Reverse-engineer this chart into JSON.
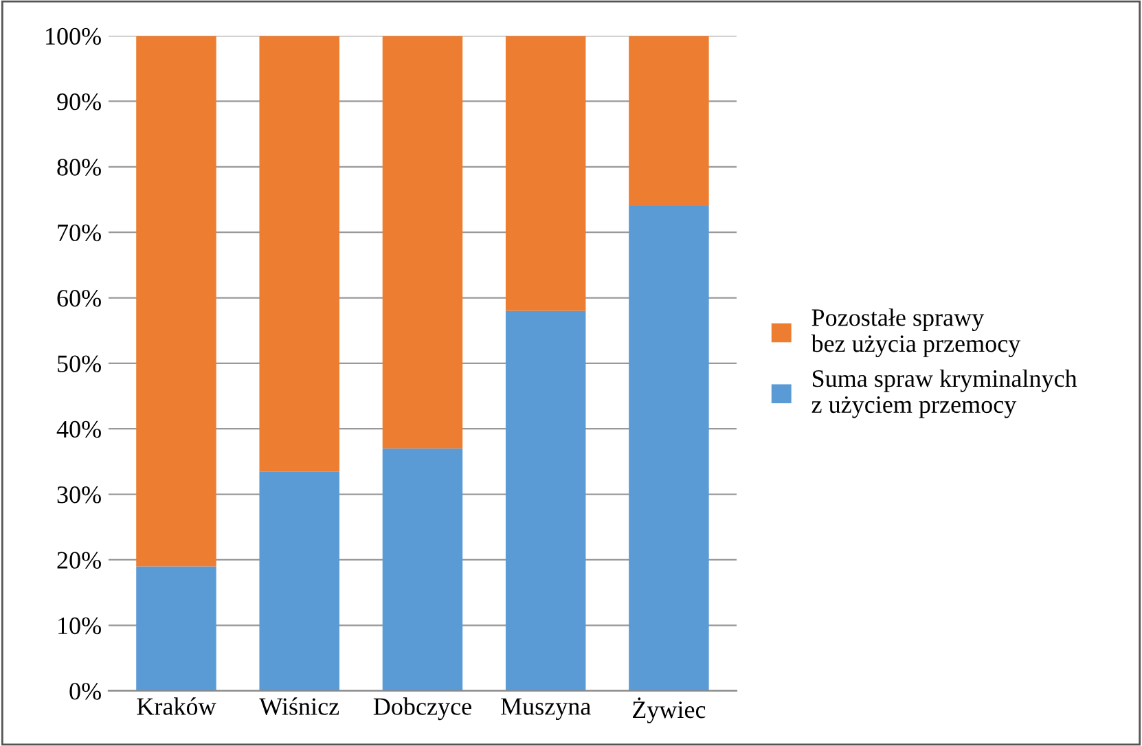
{
  "chart_data": {
    "type": "bar",
    "stacked": true,
    "categories": [
      "Kraków",
      "Wiśnicz",
      "Dobczyce",
      "Muszyna",
      "Żywiec"
    ],
    "series": [
      {
        "name": "Suma spraw kryminalnych\nz użyciem przemocy",
        "color": "#5b9bd5",
        "values": [
          19,
          33.5,
          37,
          58,
          74
        ]
      },
      {
        "name": "Pozostałe sprawy\nbez użycia przemocy",
        "color": "#ed7d31",
        "values": [
          81,
          66.5,
          63,
          42,
          26
        ]
      }
    ],
    "ylim": [
      0,
      100
    ],
    "yticks": [
      {
        "value": 0,
        "label": "0%"
      },
      {
        "value": 10,
        "label": "10%"
      },
      {
        "value": 20,
        "label": "20%"
      },
      {
        "value": 30,
        "label": "30%"
      },
      {
        "value": 40,
        "label": "40%"
      },
      {
        "value": 50,
        "label": "50%"
      },
      {
        "value": 60,
        "label": "60%"
      },
      {
        "value": 70,
        "label": "70%"
      },
      {
        "value": 80,
        "label": "80%"
      },
      {
        "value": 90,
        "label": "90%"
      },
      {
        "value": 100,
        "label": "100%"
      }
    ],
    "grid": "y",
    "legend": "right"
  }
}
